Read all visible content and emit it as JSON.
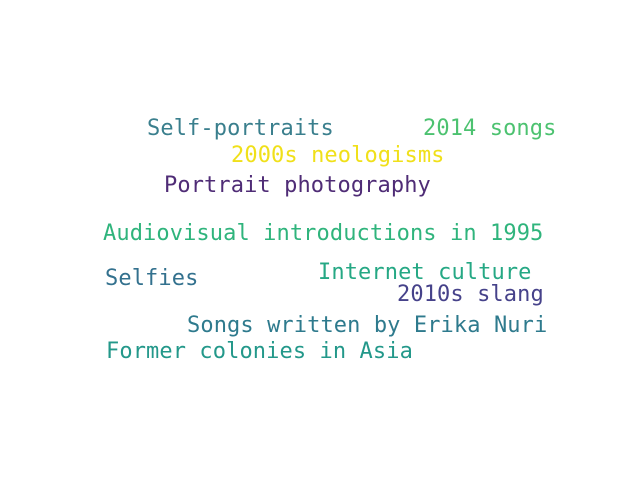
{
  "words": [
    {
      "text": "Self-portraits",
      "color": "#3a7f8d"
    },
    {
      "text": "2014 songs",
      "color": "#4cc270"
    },
    {
      "text": "2000s neologisms",
      "color": "#f0e01a"
    },
    {
      "text": "Portrait photography",
      "color": "#4f2c76"
    },
    {
      "text": "Audiovisual introductions in 1995",
      "color": "#2fb47c"
    },
    {
      "text": "Selfies",
      "color": "#33718e"
    },
    {
      "text": "Internet culture",
      "color": "#25a884"
    },
    {
      "text": "2010s slang",
      "color": "#46428a"
    },
    {
      "text": "Songs written by Erika Nuri",
      "color": "#2e7a8d"
    },
    {
      "text": "Former colonies in Asia",
      "color": "#23988a"
    }
  ]
}
